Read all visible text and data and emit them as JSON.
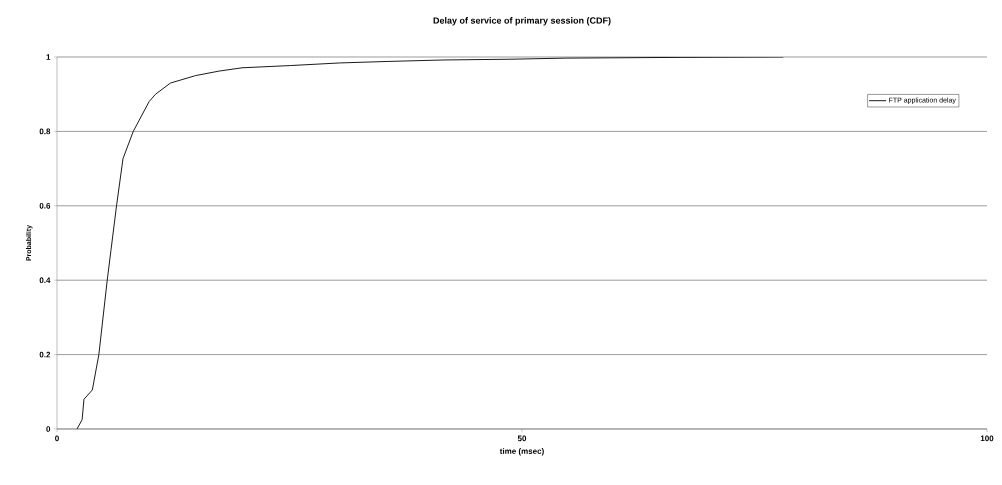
{
  "chart_data": {
    "type": "line",
    "title": "Delay of service of primary session (CDF)",
    "xlabel": "time (msec)",
    "ylabel": "Probability",
    "series": [
      {
        "name": "FTP application delay",
        "color": "#000000",
        "x": [
          2.15,
          2.7,
          2.9,
          3.8,
          4.5,
          5.4,
          5.8,
          6.4,
          7.1,
          8.2,
          9.9,
          10.6,
          12.2,
          14.9,
          17.4,
          19.9,
          25.1,
          30.4,
          35.5,
          41.6,
          48.7,
          54.8,
          67.3,
          78.1
        ],
        "values": [
          0,
          0.025,
          0.08,
          0.105,
          0.2,
          0.4,
          0.48,
          0.6,
          0.727,
          0.8,
          0.88,
          0.9,
          0.93,
          0.95,
          0.962,
          0.971,
          0.977,
          0.984,
          0.988,
          0.992,
          0.994,
          0.997,
          0.999,
          1.0
        ]
      }
    ],
    "xlim": [
      0,
      100
    ],
    "ylim": [
      0,
      1
    ],
    "xticks": [
      0,
      50,
      100
    ],
    "yticks": [
      0,
      0.2,
      0.4,
      0.6,
      0.8,
      1
    ],
    "grid": "y",
    "legend": "top right",
    "marker": "none",
    "line_style": "solid"
  }
}
